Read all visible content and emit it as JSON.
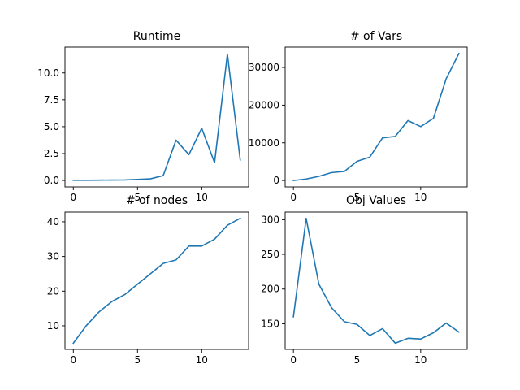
{
  "chart_data": [
    {
      "type": "line",
      "title": "Runtime",
      "x": [
        0,
        1,
        2,
        3,
        4,
        5,
        6,
        7,
        8,
        9,
        10,
        11,
        12,
        13
      ],
      "values": [
        0.02,
        0.02,
        0.03,
        0.04,
        0.05,
        0.1,
        0.15,
        0.45,
        3.75,
        2.4,
        4.85,
        1.65,
        11.75,
        1.9
      ],
      "xlim": [
        -0.65,
        13.65
      ],
      "ylim": [
        -0.6,
        12.4
      ],
      "xticks": [
        0,
        5,
        10
      ],
      "yticks": [
        0.0,
        2.5,
        5.0,
        7.5,
        10.0
      ],
      "ytick_labels": [
        "0.0",
        "2.5",
        "5.0",
        "7.5",
        "10.0"
      ],
      "color": "#1f77b4"
    },
    {
      "type": "line",
      "title": "# of Vars",
      "x": [
        0,
        1,
        2,
        3,
        4,
        5,
        6,
        7,
        8,
        9,
        10,
        11,
        12,
        13
      ],
      "values": [
        0,
        400,
        1100,
        2100,
        2400,
        5100,
        6200,
        11300,
        11700,
        15900,
        14300,
        16500,
        27000,
        33700
      ],
      "xlim": [
        -0.65,
        13.65
      ],
      "ylim": [
        -1700,
        35400
      ],
      "xticks": [
        0,
        5,
        10
      ],
      "yticks": [
        0,
        10000,
        20000,
        30000
      ],
      "ytick_labels": [
        "0",
        "10000",
        "20000",
        "30000"
      ],
      "color": "#1f77b4"
    },
    {
      "type": "line",
      "title": "# of nodes",
      "x": [
        0,
        1,
        2,
        3,
        4,
        5,
        6,
        7,
        8,
        9,
        10,
        11,
        12,
        13
      ],
      "values": [
        5,
        10,
        14,
        17,
        19,
        22,
        25,
        28,
        29,
        33,
        33,
        35,
        39,
        41
      ],
      "xlim": [
        -0.65,
        13.65
      ],
      "ylim": [
        3.2,
        42.8
      ],
      "xticks": [
        0,
        5,
        10
      ],
      "yticks": [
        10,
        20,
        30,
        40
      ],
      "ytick_labels": [
        "10",
        "20",
        "30",
        "40"
      ],
      "color": "#1f77b4"
    },
    {
      "type": "line",
      "title": "Obj Values",
      "x": [
        0,
        1,
        2,
        3,
        4,
        5,
        6,
        7,
        8,
        9,
        10,
        11,
        12,
        13
      ],
      "values": [
        160,
        302,
        207,
        173,
        153,
        149,
        133,
        143,
        122,
        129,
        128,
        137,
        151,
        138
      ],
      "xlim": [
        -0.65,
        13.65
      ],
      "ylim": [
        113,
        311
      ],
      "xticks": [
        0,
        5,
        10
      ],
      "yticks": [
        150,
        200,
        250,
        300
      ],
      "ytick_labels": [
        "150",
        "200",
        "250",
        "300"
      ],
      "color": "#1f77b4"
    }
  ]
}
